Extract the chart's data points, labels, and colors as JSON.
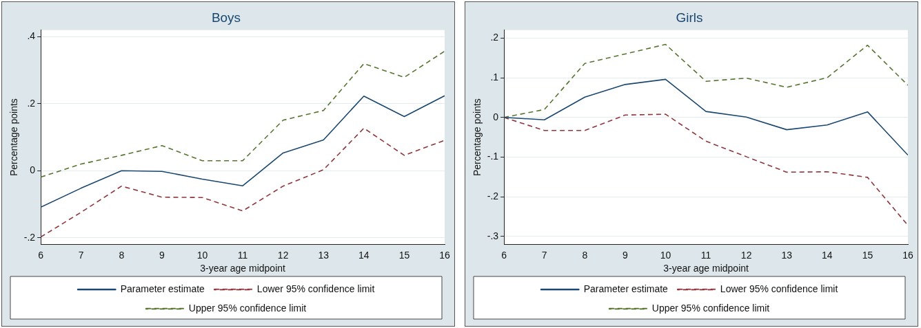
{
  "chart_data": [
    {
      "type": "line",
      "title": "Boys",
      "xlabel": "3-year age midpoint",
      "ylabel": "Percentage points",
      "x": [
        6,
        7,
        8,
        9,
        10,
        11,
        12,
        13,
        14,
        15,
        16
      ],
      "xlim": [
        6,
        16
      ],
      "xticks": [
        6,
        7,
        8,
        9,
        10,
        11,
        12,
        13,
        14,
        15,
        16
      ],
      "ylim": [
        -0.22,
        0.42
      ],
      "yticks": [
        {
          "value": -0.2,
          "label": "-.2"
        },
        {
          "value": 0,
          "label": "0"
        },
        {
          "value": 0.2,
          "label": ".2"
        },
        {
          "value": 0.4,
          "label": ".4"
        }
      ],
      "grid": "y",
      "legend": "bottom",
      "marker": "none",
      "series": [
        {
          "name": "Parameter estimate",
          "color": "#1a476f",
          "line_style": "solid",
          "values": [
            -0.109,
            -0.052,
            0,
            -0.002,
            -0.025,
            -0.045,
            0.053,
            0.092,
            0.223,
            0.162,
            0.224
          ]
        },
        {
          "name": "Lower 95% confidence limit",
          "color": "#90353b",
          "line_style": "dashed",
          "values": [
            -0.198,
            -0.124,
            -0.046,
            -0.079,
            -0.08,
            -0.12,
            -0.046,
            0.003,
            0.127,
            0.046,
            0.091
          ]
        },
        {
          "name": "Upper 95% confidence limit",
          "color": "#55752f",
          "line_style": "dashed",
          "values": [
            -0.019,
            0.02,
            0.046,
            0.075,
            0.03,
            0.03,
            0.151,
            0.18,
            0.32,
            0.279,
            0.357
          ]
        }
      ]
    },
    {
      "type": "line",
      "title": "Girls",
      "xlabel": "3-year age midpoint",
      "ylabel": "Percentage points",
      "x": [
        6,
        7,
        8,
        9,
        10,
        11,
        12,
        13,
        14,
        15,
        16
      ],
      "xlim": [
        6,
        16
      ],
      "xticks": [
        6,
        7,
        8,
        9,
        10,
        11,
        12,
        13,
        14,
        15,
        16
      ],
      "ylim": [
        -0.32,
        0.22
      ],
      "yticks": [
        {
          "value": -0.3,
          "label": "-.3"
        },
        {
          "value": -0.2,
          "label": "-.2"
        },
        {
          "value": -0.1,
          "label": "-.1"
        },
        {
          "value": 0,
          "label": "0"
        },
        {
          "value": 0.1,
          "label": ".1"
        },
        {
          "value": 0.2,
          "label": ".2"
        }
      ],
      "grid": "y",
      "legend": "bottom",
      "marker": "none",
      "series": [
        {
          "name": "Parameter estimate",
          "color": "#1a476f",
          "line_style": "solid",
          "values": [
            0,
            -0.006,
            0.051,
            0.083,
            0.096,
            0.015,
            0.001,
            -0.031,
            -0.019,
            0.014,
            -0.095
          ]
        },
        {
          "name": "Lower 95% confidence limit",
          "color": "#90353b",
          "line_style": "dashed",
          "values": [
            0,
            -0.033,
            -0.033,
            0.006,
            0.008,
            -0.06,
            -0.099,
            -0.138,
            -0.137,
            -0.151,
            -0.272
          ]
        },
        {
          "name": "Upper 95% confidence limit",
          "color": "#55752f",
          "line_style": "dashed",
          "values": [
            0,
            0.02,
            0.136,
            0.16,
            0.184,
            0.091,
            0.099,
            0.076,
            0.1,
            0.182,
            0.081
          ]
        }
      ]
    }
  ]
}
